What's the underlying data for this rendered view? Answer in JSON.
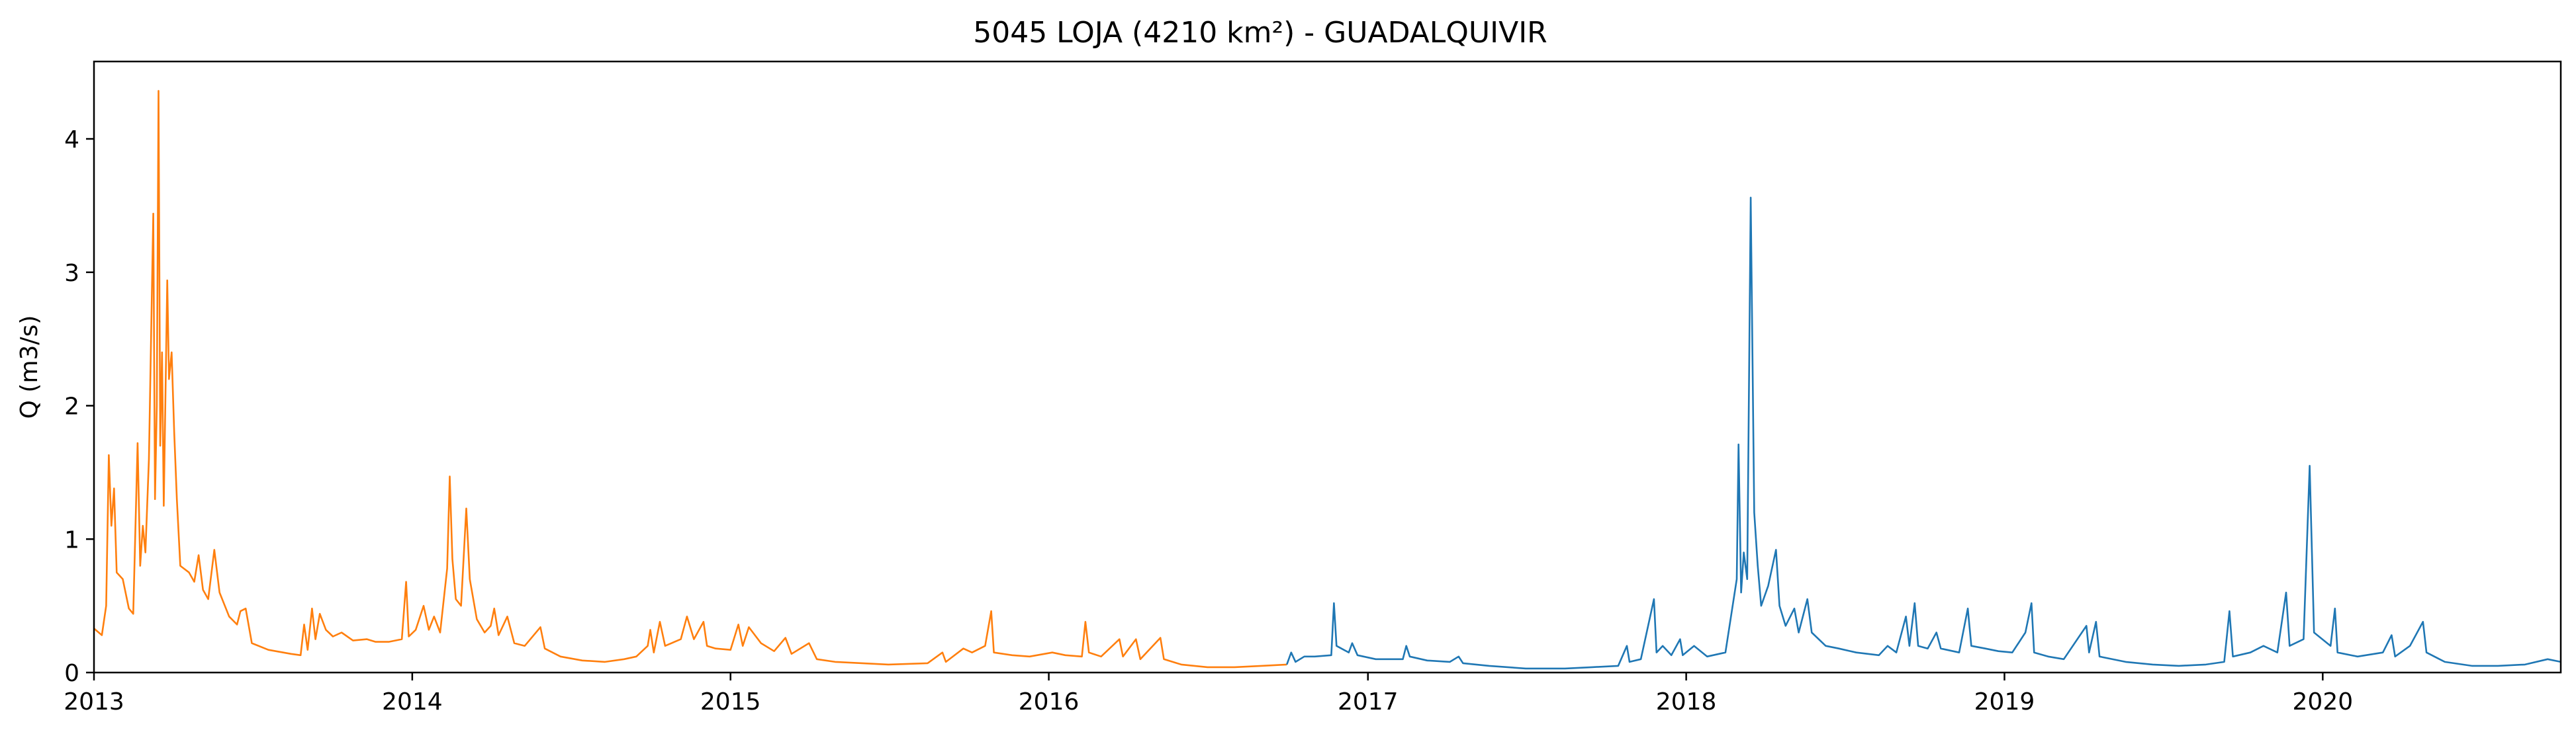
{
  "chart_data": {
    "type": "line",
    "title": "5045 LOJA (4210 km²) - GUADALQUIVIR",
    "xlabel": "",
    "ylabel": "Q (m3/s)",
    "xlim": [
      "2013-01-01",
      "2020-09-30"
    ],
    "ylim": [
      0,
      4.58
    ],
    "x_ticks": [
      "2013",
      "2014",
      "2015",
      "2016",
      "2017",
      "2018",
      "2019",
      "2020"
    ],
    "y_ticks": [
      "0",
      "1",
      "2",
      "3",
      "4"
    ],
    "grid": false,
    "legend": "none",
    "series": [
      {
        "color": "#ff7f0e",
        "points": [
          [
            "2013-01-01",
            0.33
          ],
          [
            "2013-01-10",
            0.28
          ],
          [
            "2013-01-15",
            0.5
          ],
          [
            "2013-01-18",
            1.63
          ],
          [
            "2013-01-21",
            1.1
          ],
          [
            "2013-01-24",
            1.38
          ],
          [
            "2013-01-27",
            0.75
          ],
          [
            "2013-02-03",
            0.7
          ],
          [
            "2013-02-10",
            0.48
          ],
          [
            "2013-02-15",
            0.44
          ],
          [
            "2013-02-20",
            1.72
          ],
          [
            "2013-02-23",
            0.8
          ],
          [
            "2013-02-26",
            1.1
          ],
          [
            "2013-03-01",
            0.9
          ],
          [
            "2013-03-05",
            1.6
          ],
          [
            "2013-03-10",
            3.44
          ],
          [
            "2013-03-12",
            1.3
          ],
          [
            "2013-03-14",
            2.0
          ],
          [
            "2013-03-16",
            4.36
          ],
          [
            "2013-03-18",
            1.7
          ],
          [
            "2013-03-20",
            2.4
          ],
          [
            "2013-03-22",
            1.25
          ],
          [
            "2013-03-26",
            2.94
          ],
          [
            "2013-03-28",
            2.2
          ],
          [
            "2013-03-31",
            2.4
          ],
          [
            "2013-04-03",
            1.8
          ],
          [
            "2013-04-06",
            1.3
          ],
          [
            "2013-04-10",
            0.8
          ],
          [
            "2013-04-20",
            0.75
          ],
          [
            "2013-04-26",
            0.68
          ],
          [
            "2013-05-01",
            0.88
          ],
          [
            "2013-05-06",
            0.62
          ],
          [
            "2013-05-12",
            0.55
          ],
          [
            "2013-05-19",
            0.92
          ],
          [
            "2013-05-25",
            0.6
          ],
          [
            "2013-06-05",
            0.42
          ],
          [
            "2013-06-14",
            0.36
          ],
          [
            "2013-06-18",
            0.46
          ],
          [
            "2013-06-24",
            0.48
          ],
          [
            "2013-07-01",
            0.22
          ],
          [
            "2013-07-20",
            0.17
          ],
          [
            "2013-08-15",
            0.14
          ],
          [
            "2013-08-26",
            0.13
          ],
          [
            "2013-08-30",
            0.36
          ],
          [
            "2013-09-03",
            0.17
          ],
          [
            "2013-09-08",
            0.48
          ],
          [
            "2013-09-12",
            0.25
          ],
          [
            "2013-09-17",
            0.44
          ],
          [
            "2013-09-24",
            0.32
          ],
          [
            "2013-10-02",
            0.27
          ],
          [
            "2013-10-12",
            0.3
          ],
          [
            "2013-10-25",
            0.24
          ],
          [
            "2013-11-10",
            0.25
          ],
          [
            "2013-11-20",
            0.23
          ],
          [
            "2013-12-05",
            0.23
          ],
          [
            "2013-12-20",
            0.25
          ],
          [
            "2013-12-25",
            0.68
          ],
          [
            "2013-12-28",
            0.27
          ],
          [
            "2014-01-05",
            0.32
          ],
          [
            "2014-01-14",
            0.5
          ],
          [
            "2014-01-20",
            0.32
          ],
          [
            "2014-01-26",
            0.42
          ],
          [
            "2014-02-02",
            0.3
          ],
          [
            "2014-02-10",
            0.78
          ],
          [
            "2014-02-13",
            1.47
          ],
          [
            "2014-02-16",
            0.85
          ],
          [
            "2014-02-20",
            0.55
          ],
          [
            "2014-02-26",
            0.5
          ],
          [
            "2014-03-04",
            1.23
          ],
          [
            "2014-03-08",
            0.7
          ],
          [
            "2014-03-16",
            0.4
          ],
          [
            "2014-03-25",
            0.3
          ],
          [
            "2014-04-01",
            0.35
          ],
          [
            "2014-04-05",
            0.48
          ],
          [
            "2014-04-10",
            0.28
          ],
          [
            "2014-04-20",
            0.42
          ],
          [
            "2014-04-28",
            0.22
          ],
          [
            "2014-05-10",
            0.2
          ],
          [
            "2014-05-28",
            0.34
          ],
          [
            "2014-06-02",
            0.18
          ],
          [
            "2014-06-20",
            0.12
          ],
          [
            "2014-07-15",
            0.09
          ],
          [
            "2014-08-10",
            0.08
          ],
          [
            "2014-09-01",
            0.1
          ],
          [
            "2014-09-15",
            0.12
          ],
          [
            "2014-09-28",
            0.2
          ],
          [
            "2014-10-01",
            0.32
          ],
          [
            "2014-10-05",
            0.15
          ],
          [
            "2014-10-12",
            0.38
          ],
          [
            "2014-10-18",
            0.2
          ],
          [
            "2014-11-05",
            0.25
          ],
          [
            "2014-11-12",
            0.42
          ],
          [
            "2014-11-20",
            0.25
          ],
          [
            "2014-12-01",
            0.38
          ],
          [
            "2014-12-05",
            0.2
          ],
          [
            "2014-12-15",
            0.18
          ],
          [
            "2015-01-01",
            0.17
          ],
          [
            "2015-01-10",
            0.36
          ],
          [
            "2015-01-15",
            0.2
          ],
          [
            "2015-01-22",
            0.34
          ],
          [
            "2015-02-05",
            0.22
          ],
          [
            "2015-02-20",
            0.16
          ],
          [
            "2015-03-05",
            0.26
          ],
          [
            "2015-03-12",
            0.14
          ],
          [
            "2015-04-01",
            0.22
          ],
          [
            "2015-04-10",
            0.1
          ],
          [
            "2015-05-01",
            0.08
          ],
          [
            "2015-06-01",
            0.07
          ],
          [
            "2015-07-01",
            0.06
          ],
          [
            "2015-08-15",
            0.07
          ],
          [
            "2015-09-01",
            0.15
          ],
          [
            "2015-09-05",
            0.08
          ],
          [
            "2015-09-25",
            0.18
          ],
          [
            "2015-10-05",
            0.15
          ],
          [
            "2015-10-20",
            0.2
          ],
          [
            "2015-10-27",
            0.46
          ],
          [
            "2015-10-30",
            0.15
          ],
          [
            "2015-11-20",
            0.13
          ],
          [
            "2015-12-10",
            0.12
          ],
          [
            "2016-01-05",
            0.15
          ],
          [
            "2016-01-20",
            0.13
          ],
          [
            "2016-02-08",
            0.12
          ],
          [
            "2016-02-12",
            0.38
          ],
          [
            "2016-02-16",
            0.15
          ],
          [
            "2016-03-01",
            0.12
          ],
          [
            "2016-03-22",
            0.25
          ],
          [
            "2016-03-26",
            0.12
          ],
          [
            "2016-04-10",
            0.25
          ],
          [
            "2016-04-15",
            0.1
          ],
          [
            "2016-05-08",
            0.26
          ],
          [
            "2016-05-12",
            0.1
          ],
          [
            "2016-06-01",
            0.06
          ],
          [
            "2016-07-01",
            0.04
          ],
          [
            "2016-08-01",
            0.04
          ],
          [
            "2016-09-01",
            0.05
          ],
          [
            "2016-09-30",
            0.06
          ]
        ]
      },
      {
        "color": "#1f77b4",
        "points": [
          [
            "2016-09-30",
            0.06
          ],
          [
            "2016-10-05",
            0.15
          ],
          [
            "2016-10-10",
            0.08
          ],
          [
            "2016-10-20",
            0.12
          ],
          [
            "2016-11-01",
            0.12
          ],
          [
            "2016-11-20",
            0.13
          ],
          [
            "2016-11-23",
            0.52
          ],
          [
            "2016-11-26",
            0.2
          ],
          [
            "2016-12-10",
            0.15
          ],
          [
            "2016-12-14",
            0.22
          ],
          [
            "2016-12-20",
            0.13
          ],
          [
            "2017-01-10",
            0.1
          ],
          [
            "2017-02-10",
            0.1
          ],
          [
            "2017-02-14",
            0.2
          ],
          [
            "2017-02-18",
            0.12
          ],
          [
            "2017-03-10",
            0.09
          ],
          [
            "2017-04-05",
            0.08
          ],
          [
            "2017-04-15",
            0.12
          ],
          [
            "2017-04-20",
            0.07
          ],
          [
            "2017-05-20",
            0.05
          ],
          [
            "2017-07-01",
            0.03
          ],
          [
            "2017-08-15",
            0.03
          ],
          [
            "2017-09-15",
            0.04
          ],
          [
            "2017-10-15",
            0.05
          ],
          [
            "2017-10-25",
            0.2
          ],
          [
            "2017-10-28",
            0.08
          ],
          [
            "2017-11-10",
            0.1
          ],
          [
            "2017-11-25",
            0.55
          ],
          [
            "2017-11-28",
            0.15
          ],
          [
            "2017-12-05",
            0.2
          ],
          [
            "2017-12-15",
            0.13
          ],
          [
            "2017-12-25",
            0.25
          ],
          [
            "2017-12-28",
            0.13
          ],
          [
            "2018-01-10",
            0.2
          ],
          [
            "2018-01-25",
            0.12
          ],
          [
            "2018-02-15",
            0.15
          ],
          [
            "2018-02-28",
            0.7
          ],
          [
            "2018-03-02",
            1.71
          ],
          [
            "2018-03-05",
            0.6
          ],
          [
            "2018-03-08",
            0.9
          ],
          [
            "2018-03-12",
            0.7
          ],
          [
            "2018-03-16",
            3.56
          ],
          [
            "2018-03-20",
            1.2
          ],
          [
            "2018-03-24",
            0.8
          ],
          [
            "2018-03-28",
            0.5
          ],
          [
            "2018-04-05",
            0.65
          ],
          [
            "2018-04-14",
            0.92
          ],
          [
            "2018-04-18",
            0.5
          ],
          [
            "2018-04-25",
            0.35
          ],
          [
            "2018-05-05",
            0.48
          ],
          [
            "2018-05-10",
            0.3
          ],
          [
            "2018-05-20",
            0.55
          ],
          [
            "2018-05-25",
            0.3
          ],
          [
            "2018-06-10",
            0.2
          ],
          [
            "2018-06-25",
            0.18
          ],
          [
            "2018-07-15",
            0.15
          ],
          [
            "2018-08-10",
            0.13
          ],
          [
            "2018-08-20",
            0.2
          ],
          [
            "2018-08-30",
            0.15
          ],
          [
            "2018-09-10",
            0.42
          ],
          [
            "2018-09-14",
            0.2
          ],
          [
            "2018-09-20",
            0.52
          ],
          [
            "2018-09-24",
            0.2
          ],
          [
            "2018-10-05",
            0.18
          ],
          [
            "2018-10-15",
            0.3
          ],
          [
            "2018-10-20",
            0.18
          ],
          [
            "2018-11-10",
            0.15
          ],
          [
            "2018-11-20",
            0.48
          ],
          [
            "2018-11-24",
            0.2
          ],
          [
            "2018-12-10",
            0.18
          ],
          [
            "2018-12-25",
            0.16
          ],
          [
            "2019-01-10",
            0.15
          ],
          [
            "2019-01-25",
            0.3
          ],
          [
            "2019-02-01",
            0.52
          ],
          [
            "2019-02-04",
            0.15
          ],
          [
            "2019-02-20",
            0.12
          ],
          [
            "2019-03-10",
            0.1
          ],
          [
            "2019-04-05",
            0.35
          ],
          [
            "2019-04-08",
            0.15
          ],
          [
            "2019-04-16",
            0.38
          ],
          [
            "2019-04-20",
            0.12
          ],
          [
            "2019-05-20",
            0.08
          ],
          [
            "2019-06-20",
            0.06
          ],
          [
            "2019-07-20",
            0.05
          ],
          [
            "2019-08-20",
            0.06
          ],
          [
            "2019-09-10",
            0.08
          ],
          [
            "2019-09-16",
            0.46
          ],
          [
            "2019-09-20",
            0.12
          ],
          [
            "2019-10-10",
            0.15
          ],
          [
            "2019-10-25",
            0.2
          ],
          [
            "2019-11-10",
            0.15
          ],
          [
            "2019-11-20",
            0.6
          ],
          [
            "2019-11-24",
            0.2
          ],
          [
            "2019-12-10",
            0.25
          ],
          [
            "2019-12-17",
            1.55
          ],
          [
            "2019-12-22",
            0.3
          ],
          [
            "2020-01-10",
            0.2
          ],
          [
            "2020-01-15",
            0.48
          ],
          [
            "2020-01-18",
            0.15
          ],
          [
            "2020-02-10",
            0.12
          ],
          [
            "2020-03-10",
            0.15
          ],
          [
            "2020-03-20",
            0.28
          ],
          [
            "2020-03-24",
            0.12
          ],
          [
            "2020-04-10",
            0.2
          ],
          [
            "2020-04-25",
            0.38
          ],
          [
            "2020-04-29",
            0.15
          ],
          [
            "2020-05-20",
            0.08
          ],
          [
            "2020-06-20",
            0.05
          ],
          [
            "2020-07-20",
            0.05
          ],
          [
            "2020-08-20",
            0.06
          ],
          [
            "2020-09-15",
            0.1
          ],
          [
            "2020-09-30",
            0.08
          ]
        ]
      }
    ]
  }
}
